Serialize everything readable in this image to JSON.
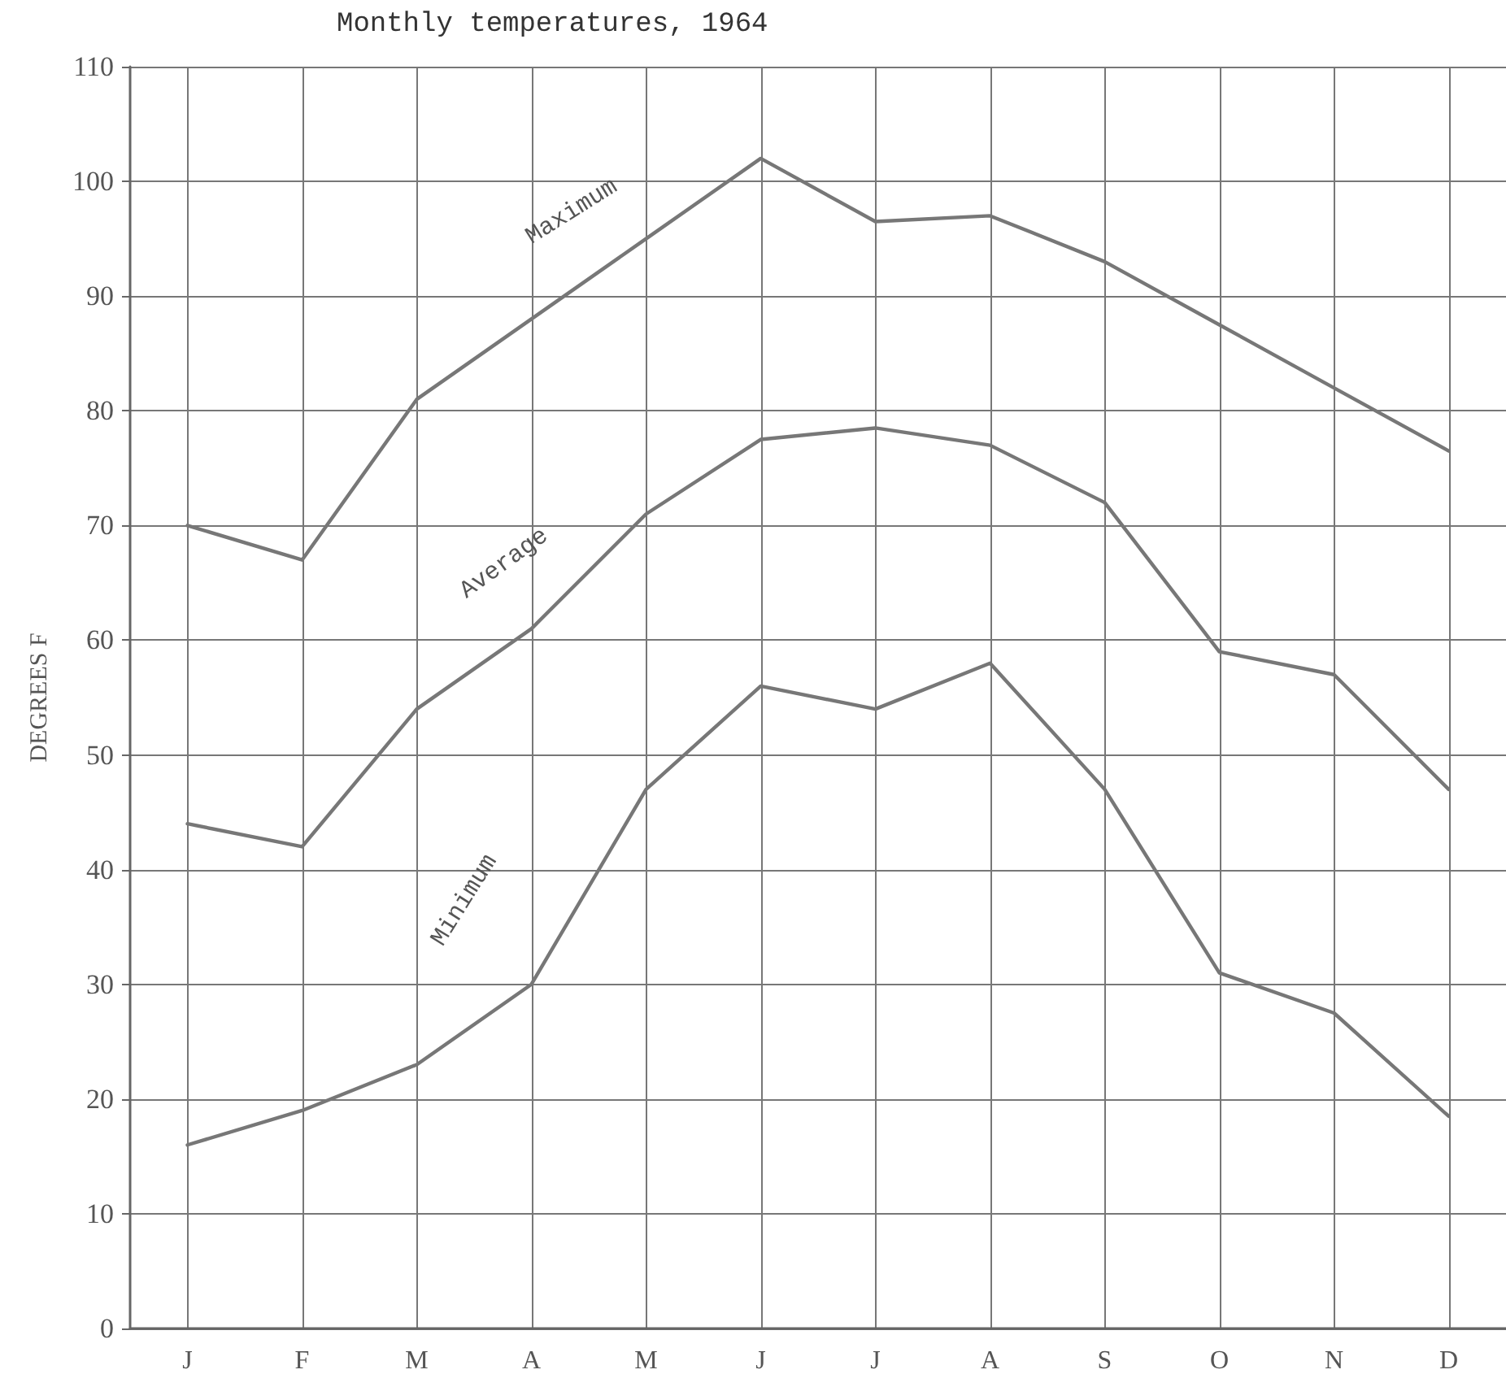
{
  "chart_data": {
    "type": "line",
    "title": "Monthly temperatures, 1964",
    "ylabel": "DEGREES F",
    "categories": [
      "J",
      "F",
      "M",
      "A",
      "M",
      "J",
      "J",
      "A",
      "S",
      "O",
      "N",
      "D"
    ],
    "series": [
      {
        "name": "Maximum",
        "color": "#777777",
        "values": [
          70,
          67,
          81,
          88,
          95,
          102,
          96.5,
          97,
          93,
          87.5,
          82,
          76.5
        ]
      },
      {
        "name": "Average",
        "color": "#777777",
        "values": [
          44,
          42,
          54,
          61,
          71,
          77.5,
          78.5,
          77,
          72,
          59,
          57,
          47
        ]
      },
      {
        "name": "Minimum",
        "color": "#777777",
        "values": [
          16,
          19,
          23,
          30,
          47,
          56,
          54,
          58,
          47,
          31,
          27.5,
          18.5
        ]
      }
    ],
    "ylim": [
      0,
      110
    ],
    "yticks": [
      0,
      10,
      20,
      30,
      40,
      50,
      60,
      70,
      80,
      90,
      100,
      110
    ],
    "grid": true,
    "legend": false,
    "marker": "none",
    "line_style": "solid"
  }
}
